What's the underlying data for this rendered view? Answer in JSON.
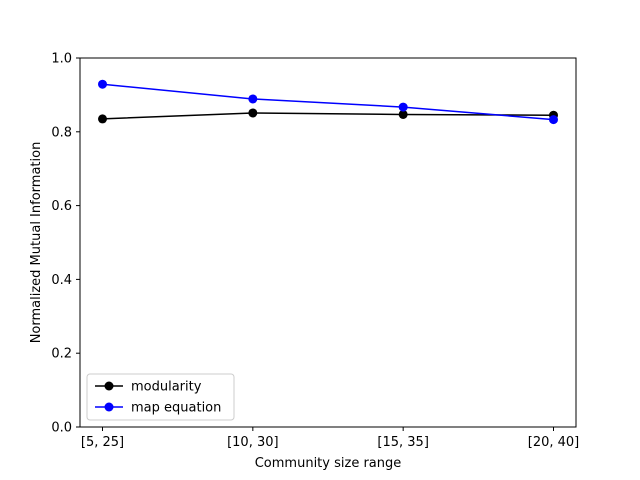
{
  "chart_data": {
    "type": "line",
    "categories": [
      "[5, 25]",
      "[10, 30]",
      "[15, 35]",
      "[20, 40]"
    ],
    "series": [
      {
        "name": "modularity",
        "values": [
          0.835,
          0.851,
          0.847,
          0.845
        ],
        "color": "#000000",
        "marker": "circle"
      },
      {
        "name": "map equation",
        "values": [
          0.929,
          0.889,
          0.867,
          0.833
        ],
        "color": "#0000ff",
        "marker": "circle"
      }
    ],
    "xlabel": "Community size range",
    "ylabel": "Normalized Mutual Information",
    "ylim": [
      0,
      1.0
    ],
    "yticks": [
      "0.0",
      "0.2",
      "0.4",
      "0.6",
      "0.8",
      "1.0"
    ],
    "grid": false,
    "legend_position": "lower-left"
  }
}
